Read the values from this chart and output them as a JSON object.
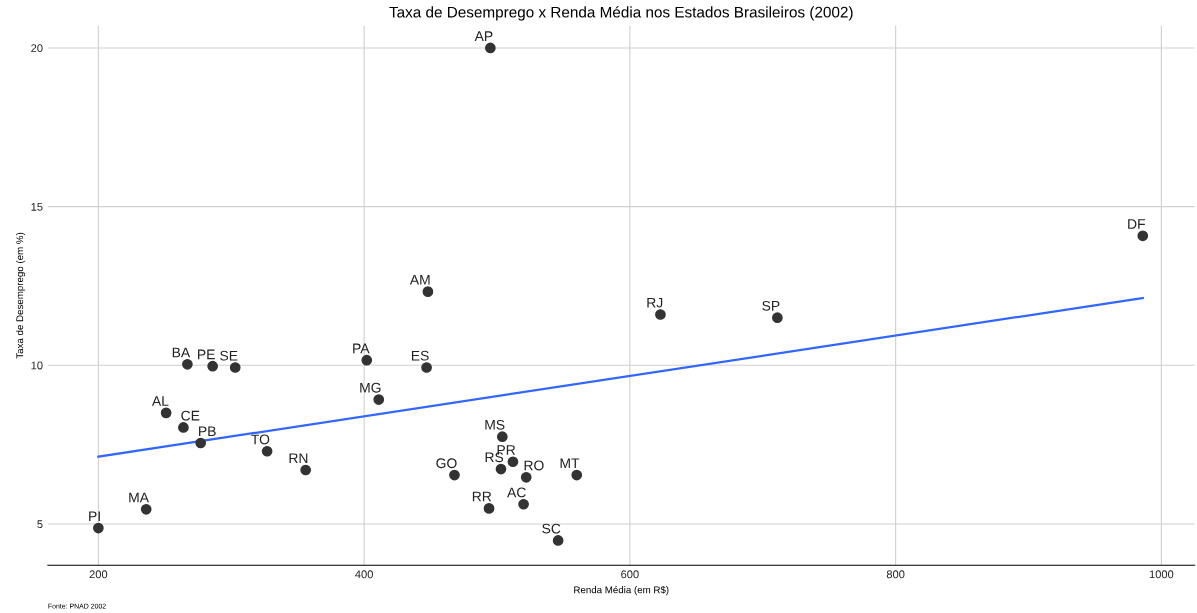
{
  "chart_data": {
    "type": "scatter",
    "title": "Taxa de Desemprego x Renda Média nos Estados Brasileiros (2002)",
    "xlabel": "Renda Média (em R$)",
    "ylabel": "Taxa de Desemprego (em %)",
    "xlim": [
      162,
      1025
    ],
    "ylim": [
      3.7,
      20.7
    ],
    "xticks": [
      200,
      400,
      600,
      800,
      1000
    ],
    "yticks": [
      5,
      10,
      15,
      20
    ],
    "grid": true,
    "series": [
      {
        "marker": "circle",
        "color": "#333333",
        "x": [
          200,
          236,
          251,
          264,
          277,
          327,
          356,
          267,
          286,
          303,
          402,
          411,
          448,
          447,
          504,
          512,
          503,
          522,
          468,
          560,
          494,
          520,
          546,
          623,
          711,
          986,
          495
        ],
        "values": [
          4.87,
          5.46,
          8.5,
          8.04,
          7.55,
          7.29,
          6.7,
          10.03,
          9.97,
          9.93,
          10.16,
          8.92,
          12.32,
          9.93,
          7.75,
          6.96,
          6.73,
          6.47,
          6.54,
          6.54,
          5.49,
          5.62,
          4.48,
          11.6,
          11.5,
          14.08,
          20.0
        ]
      },
      {
        "type": "line",
        "color": "#3366ff",
        "x": [
          200,
          986
        ],
        "values": [
          7.12,
          12.12
        ]
      }
    ],
    "annotations": [
      {
        "text": "PI",
        "x": 200,
        "y": 4.87
      },
      {
        "text": "MA",
        "x": 236,
        "y": 5.46
      },
      {
        "text": "AL",
        "x": 251,
        "y": 8.5
      },
      {
        "text": "CE",
        "x": 264,
        "y": 8.04
      },
      {
        "text": "PB",
        "x": 277,
        "y": 7.55
      },
      {
        "text": "TO",
        "x": 327,
        "y": 7.29
      },
      {
        "text": "RN",
        "x": 356,
        "y": 6.7
      },
      {
        "text": "BA",
        "x": 267,
        "y": 10.03
      },
      {
        "text": "PE",
        "x": 286,
        "y": 9.97
      },
      {
        "text": "SE",
        "x": 303,
        "y": 9.93
      },
      {
        "text": "PA",
        "x": 402,
        "y": 10.16
      },
      {
        "text": "MG",
        "x": 411,
        "y": 8.92
      },
      {
        "text": "AM",
        "x": 448,
        "y": 12.32
      },
      {
        "text": "ES",
        "x": 447,
        "y": 9.93
      },
      {
        "text": "MS",
        "x": 504,
        "y": 7.75
      },
      {
        "text": "PR",
        "x": 512,
        "y": 6.96
      },
      {
        "text": "RS",
        "x": 503,
        "y": 6.73
      },
      {
        "text": "RO",
        "x": 522,
        "y": 6.47
      },
      {
        "text": "GO",
        "x": 468,
        "y": 6.54
      },
      {
        "text": "MT",
        "x": 560,
        "y": 6.54
      },
      {
        "text": "RR",
        "x": 494,
        "y": 5.49
      },
      {
        "text": "AC",
        "x": 520,
        "y": 5.62
      },
      {
        "text": "SC",
        "x": 546,
        "y": 4.48
      },
      {
        "text": "RJ",
        "x": 623,
        "y": 11.6
      },
      {
        "text": "SP",
        "x": 711,
        "y": 11.5
      },
      {
        "text": "DF",
        "x": 986,
        "y": 14.08
      },
      {
        "text": "AP",
        "x": 495,
        "y": 20.0
      },
      "Fonte: PNAD 2002"
    ]
  }
}
